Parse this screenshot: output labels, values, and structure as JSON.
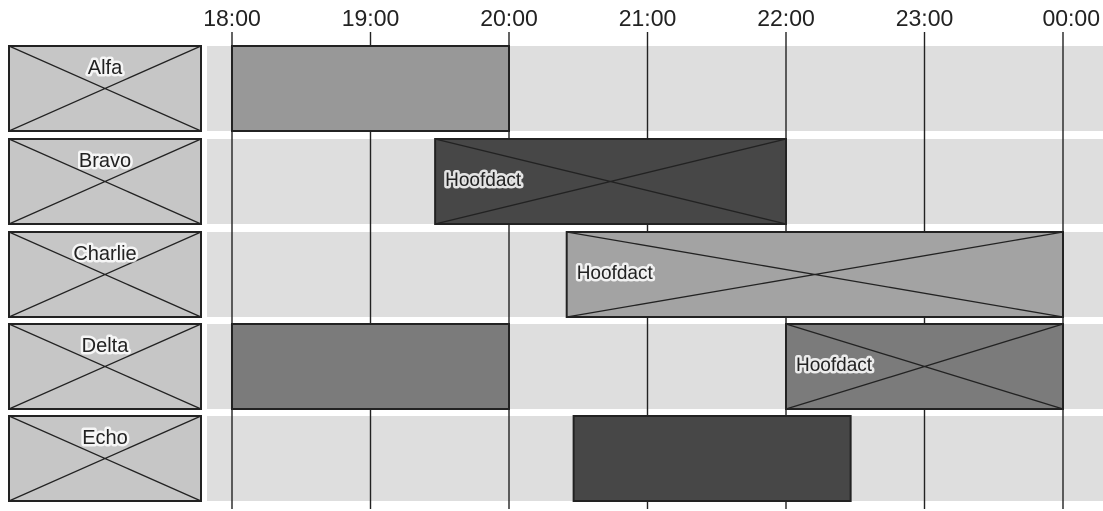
{
  "schedule": {
    "time_labels": [
      "18:00",
      "19:00",
      "20:00",
      "21:00",
      "22:00",
      "23:00",
      "00:00"
    ],
    "rows": [
      {
        "label": "Alfa"
      },
      {
        "label": "Bravo"
      },
      {
        "label": "Charlie"
      },
      {
        "label": "Delta"
      },
      {
        "label": "Echo"
      }
    ],
    "bars": [
      {
        "row": 0,
        "start": "18:00",
        "end": "20:00",
        "shade": "#989898",
        "label": "",
        "crossed": false
      },
      {
        "row": 1,
        "start": "19:28",
        "end": "22:00",
        "shade": "#474747",
        "label": "Hoofdact",
        "crossed": true
      },
      {
        "row": 2,
        "start": "20:25",
        "end": "00:00",
        "shade": "#a3a3a3",
        "label": "Hoofdact",
        "crossed": true
      },
      {
        "row": 3,
        "start": "18:00",
        "end": "20:00",
        "shade": "#7b7b7b",
        "label": "",
        "crossed": false
      },
      {
        "row": 3,
        "start": "22:00",
        "end": "00:00",
        "shade": "#7b7b7b",
        "label": "Hoofdact",
        "crossed": true
      },
      {
        "row": 4,
        "start": "20:28",
        "end": "22:28",
        "shade": "#474747",
        "label": "",
        "crossed": false
      }
    ]
  },
  "colors": {
    "row_background": "#dedede",
    "label_box": "#c6c6c6",
    "stroke": "#222222"
  }
}
